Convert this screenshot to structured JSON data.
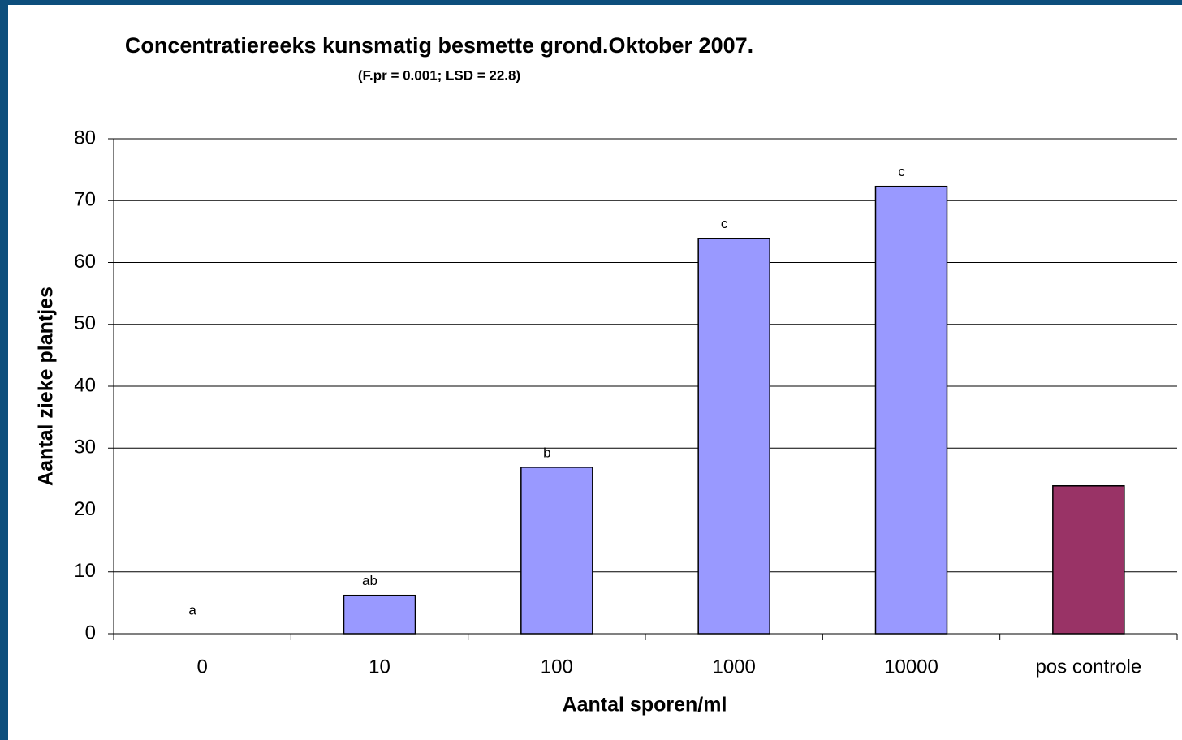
{
  "chart_data": {
    "type": "bar",
    "title": "Concentratiereeks kunsmatig besmette grond.Oktober 2007.",
    "subtitle": "(F.pr = 0.001; LSD = 22.8)",
    "x_label": "Aantal sporen/ml",
    "y_label": "Aantal zieke plantjes",
    "categories": [
      "0",
      "10",
      "100",
      "1000",
      "10000",
      "pos controle"
    ],
    "values": [
      0,
      6.2,
      26.9,
      63.9,
      72.3,
      23.9
    ],
    "colors": [
      "#9999ff",
      "#9999ff",
      "#9999ff",
      "#9999ff",
      "#9999ff",
      "#993366"
    ],
    "annotations": [
      "a",
      "ab",
      "b",
      "c",
      "c",
      null
    ],
    "ylim": [
      0,
      80
    ],
    "yticks": [
      0,
      10,
      20,
      30,
      40,
      50,
      60,
      70,
      80
    ],
    "grid": true
  }
}
